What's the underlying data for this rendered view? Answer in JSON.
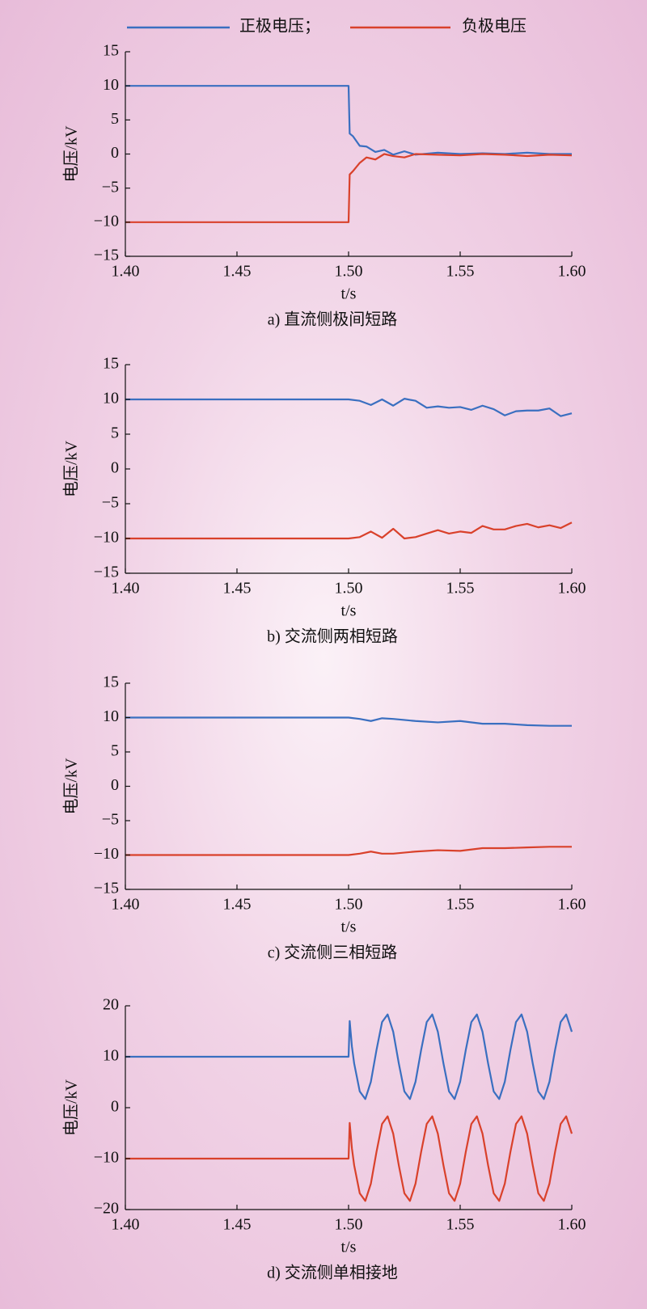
{
  "chart_data": [
    {
      "type": "line",
      "caption": "a) 直流侧极间短路",
      "x_label": "t/s",
      "y_label": "电压/kV",
      "x": [
        1.4,
        1.5,
        1.5005,
        1.502,
        1.505,
        1.508,
        1.512,
        1.516,
        1.52,
        1.525,
        1.53,
        1.54,
        1.55,
        1.56,
        1.57,
        1.58,
        1.59,
        1.6
      ],
      "series": [
        {
          "name": "正极电压；",
          "color": "#3a6fc0",
          "values": [
            10,
            10,
            3,
            2.6,
            1.2,
            1.1,
            0.3,
            0.6,
            -0.1,
            0.4,
            -0.1,
            0.2,
            0,
            0.1,
            0,
            0.2,
            0,
            0
          ]
        },
        {
          "name": "负极电压",
          "color": "#d9412b",
          "values": [
            -10,
            -10,
            -3,
            -2.5,
            -1.3,
            -0.5,
            -0.8,
            0,
            -0.3,
            -0.5,
            0,
            -0.1,
            -0.2,
            0,
            -0.1,
            -0.3,
            -0.1,
            -0.2
          ]
        }
      ],
      "xlim": [
        1.4,
        1.6
      ],
      "xticks": [
        {
          "value": 1.4,
          "label": "1.40"
        },
        {
          "value": 1.45,
          "label": "1.45"
        },
        {
          "value": 1.5,
          "label": "1.50"
        },
        {
          "value": 1.55,
          "label": "1.55"
        },
        {
          "value": 1.6,
          "label": "1.60"
        }
      ],
      "ylim": [
        -15,
        15
      ],
      "yticks": [
        {
          "value": -15,
          "label": "−15"
        },
        {
          "value": -10,
          "label": "−10"
        },
        {
          "value": -5,
          "label": "−5"
        },
        0,
        5,
        10,
        15
      ]
    },
    {
      "type": "line",
      "caption": "b) 交流侧两相短路",
      "x_label": "t/s",
      "y_label": "电压/kV",
      "x": [
        1.4,
        1.5,
        1.505,
        1.51,
        1.515,
        1.52,
        1.525,
        1.53,
        1.535,
        1.54,
        1.545,
        1.55,
        1.555,
        1.56,
        1.565,
        1.57,
        1.575,
        1.58,
        1.585,
        1.59,
        1.595,
        1.6
      ],
      "series": [
        {
          "color": "#3a6fc0",
          "values": [
            10,
            10,
            9.8,
            9.2,
            10,
            9.1,
            10.1,
            9.8,
            8.8,
            9,
            8.8,
            8.9,
            8.5,
            9.1,
            8.6,
            7.7,
            8.3,
            8.4,
            8.4,
            8.7,
            7.6,
            8
          ]
        },
        {
          "color": "#d9412b",
          "values": [
            -10,
            -10,
            -9.8,
            -9,
            -9.9,
            -8.6,
            -10,
            -9.8,
            -9.3,
            -8.8,
            -9.3,
            -9,
            -9.2,
            -8.2,
            -8.7,
            -8.7,
            -8.2,
            -7.9,
            -8.4,
            -8.1,
            -8.5,
            -7.7
          ]
        }
      ],
      "xlim": [
        1.4,
        1.6
      ],
      "xticks": [
        {
          "value": 1.4,
          "label": "1.40"
        },
        {
          "value": 1.45,
          "label": "1.45"
        },
        {
          "value": 1.5,
          "label": "1.50"
        },
        {
          "value": 1.55,
          "label": "1.55"
        },
        {
          "value": 1.6,
          "label": "1.60"
        }
      ],
      "ylim": [
        -15,
        15
      ],
      "yticks": [
        {
          "value": -15,
          "label": "−15"
        },
        {
          "value": -10,
          "label": "−10"
        },
        {
          "value": -5,
          "label": "−5"
        },
        0,
        5,
        10,
        15
      ]
    },
    {
      "type": "line",
      "caption": "c) 交流侧三相短路",
      "x_label": "t/s",
      "y_label": "电压/kV",
      "x": [
        1.4,
        1.5,
        1.505,
        1.51,
        1.515,
        1.52,
        1.53,
        1.54,
        1.55,
        1.56,
        1.57,
        1.58,
        1.59,
        1.6
      ],
      "series": [
        {
          "color": "#3a6fc0",
          "values": [
            10,
            10,
            9.8,
            9.5,
            9.9,
            9.8,
            9.5,
            9.3,
            9.5,
            9.1,
            9.1,
            8.9,
            8.8,
            8.8
          ]
        },
        {
          "color": "#d9412b",
          "values": [
            -10,
            -10,
            -9.8,
            -9.5,
            -9.8,
            -9.8,
            -9.5,
            -9.3,
            -9.4,
            -9,
            -9,
            -8.9,
            -8.8,
            -8.8
          ]
        }
      ],
      "xlim": [
        1.4,
        1.6
      ],
      "xticks": [
        {
          "value": 1.4,
          "label": "1.40"
        },
        {
          "value": 1.45,
          "label": "1.45"
        },
        {
          "value": 1.5,
          "label": "1.50"
        },
        {
          "value": 1.55,
          "label": "1.55"
        },
        {
          "value": 1.6,
          "label": "1.60"
        }
      ],
      "ylim": [
        -15,
        15
      ],
      "yticks": [
        {
          "value": -15,
          "label": "−15"
        },
        {
          "value": -10,
          "label": "−10"
        },
        {
          "value": -5,
          "label": "−5"
        },
        0,
        5,
        10,
        15
      ]
    },
    {
      "type": "line",
      "caption": "d) 交流侧单相接地",
      "x_label": "t/s",
      "y_label": "电压/kV",
      "x": [
        1.4,
        1.5,
        1.5005,
        1.5015,
        1.5025,
        1.505,
        1.5075,
        1.51,
        1.5125,
        1.515,
        1.5175,
        1.52,
        1.5225,
        1.525,
        1.5275,
        1.53,
        1.5325,
        1.535,
        1.5375,
        1.54,
        1.5425,
        1.545,
        1.5475,
        1.55,
        1.5525,
        1.555,
        1.5575,
        1.56,
        1.5625,
        1.565,
        1.5675,
        1.57,
        1.5725,
        1.575,
        1.5775,
        1.58,
        1.5825,
        1.585,
        1.5875,
        1.59,
        1.5925,
        1.595,
        1.5975,
        1.6
      ],
      "series": [
        {
          "color": "#3a6fc0",
          "values": [
            10,
            10,
            17,
            12,
            8.7,
            3.2,
            1.7,
            5.1,
            11.3,
            16.8,
            18.3,
            14.9,
            8.7,
            3.2,
            1.7,
            5.1,
            11.3,
            16.8,
            18.3,
            14.9,
            8.7,
            3.2,
            1.7,
            5.1,
            11.3,
            16.8,
            18.3,
            14.9,
            8.7,
            3.2,
            1.7,
            5.1,
            11.3,
            16.8,
            18.3,
            14.9,
            8.7,
            3.2,
            1.7,
            5.1,
            11.3,
            16.8,
            18.3,
            14.9
          ]
        },
        {
          "color": "#d9412b",
          "values": [
            -10,
            -10,
            -3,
            -8,
            -11.3,
            -16.8,
            -18.3,
            -14.9,
            -8.7,
            -3.2,
            -1.7,
            -5.1,
            -11.3,
            -16.8,
            -18.3,
            -14.9,
            -8.7,
            -3.2,
            -1.7,
            -5.1,
            -11.3,
            -16.8,
            -18.3,
            -14.9,
            -8.7,
            -3.2,
            -1.7,
            -5.1,
            -11.3,
            -16.8,
            -18.3,
            -14.9,
            -8.7,
            -3.2,
            -1.7,
            -5.1,
            -11.3,
            -16.8,
            -18.3,
            -14.9,
            -8.7,
            -3.2,
            -1.7,
            -5.1
          ]
        }
      ],
      "xlim": [
        1.4,
        1.6
      ],
      "xticks": [
        {
          "value": 1.4,
          "label": "1.40"
        },
        {
          "value": 1.45,
          "label": "1.45"
        },
        {
          "value": 1.5,
          "label": "1.50"
        },
        {
          "value": 1.55,
          "label": "1.55"
        },
        {
          "value": 1.6,
          "label": "1.60"
        }
      ],
      "ylim": [
        -20,
        20
      ],
      "yticks": [
        {
          "value": -20,
          "label": "−20"
        },
        {
          "value": -10,
          "label": "−10"
        },
        0,
        10,
        20
      ]
    }
  ]
}
